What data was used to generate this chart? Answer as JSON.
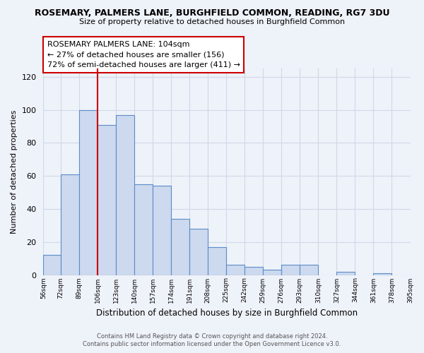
{
  "title": "ROSEMARY, PALMERS LANE, BURGHFIELD COMMON, READING, RG7 3DU",
  "subtitle": "Size of property relative to detached houses in Burghfield Common",
  "xlabel": "Distribution of detached houses by size in Burghfield Common",
  "ylabel": "Number of detached properties",
  "bin_edges": [
    56,
    72,
    89,
    106,
    123,
    140,
    157,
    174,
    191,
    208,
    225,
    242,
    259,
    276,
    293,
    310,
    327,
    344,
    361,
    378,
    395
  ],
  "bar_heights": [
    12,
    61,
    100,
    91,
    97,
    55,
    54,
    34,
    28,
    17,
    6,
    5,
    3,
    6,
    6,
    0,
    2,
    0,
    1,
    0
  ],
  "bar_color": "#ccd9ee",
  "bar_edge_color": "#5b8cc8",
  "ref_line_x": 106,
  "ref_line_color": "#cc0000",
  "ylim": [
    0,
    125
  ],
  "yticks": [
    0,
    20,
    40,
    60,
    80,
    100,
    120
  ],
  "annotation_title": "ROSEMARY PALMERS LANE: 104sqm",
  "annotation_line1": "← 27% of detached houses are smaller (156)",
  "annotation_line2": "72% of semi-detached houses are larger (411) →",
  "footer_line1": "Contains HM Land Registry data © Crown copyright and database right 2024.",
  "footer_line2": "Contains public sector information licensed under the Open Government Licence v3.0.",
  "background_color": "#eef2f9",
  "grid_color": "#d0d8e8",
  "tick_labels": [
    "56sqm",
    "72sqm",
    "89sqm",
    "106sqm",
    "123sqm",
    "140sqm",
    "157sqm",
    "174sqm",
    "191sqm",
    "208sqm",
    "225sqm",
    "242sqm",
    "259sqm",
    "276sqm",
    "293sqm",
    "310sqm",
    "327sqm",
    "344sqm",
    "361sqm",
    "378sqm",
    "395sqm"
  ]
}
